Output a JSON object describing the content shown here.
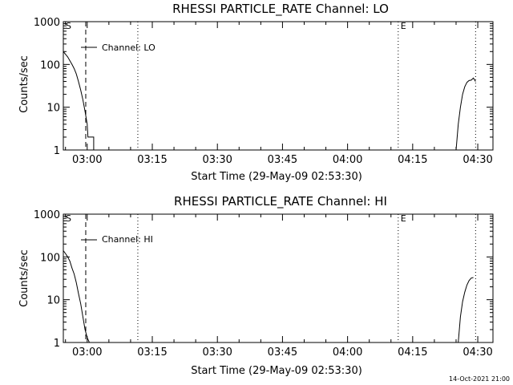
{
  "chart_data": [
    {
      "type": "line",
      "title": "RHESSI PARTICLE_RATE Channel: LO",
      "xlabel": "Start Time (29-May-09 02:53:30)",
      "ylabel": "Counts/sec",
      "yscale": "log",
      "ylim": [
        1,
        1000
      ],
      "xlim": [
        "02:54:30",
        "04:33:30"
      ],
      "x_ticks": [
        "03:00",
        "03:15",
        "03:30",
        "03:45",
        "04:00",
        "04:15",
        "04:30"
      ],
      "y_ticks": [
        "1",
        "10",
        "100",
        "1000"
      ],
      "legend": {
        "label": "Channel: LO",
        "position": "top-left"
      },
      "markers": [
        {
          "label": "S",
          "time": "02:54:30",
          "style": "dotted"
        },
        {
          "label": "",
          "time": "02:59:40",
          "style": "dashed"
        },
        {
          "label": "",
          "time": "03:11:40",
          "style": "dotted"
        },
        {
          "label": "E",
          "time": "04:11:40",
          "style": "dotted"
        },
        {
          "label": "",
          "time": "04:29:30",
          "style": "dotted"
        }
      ],
      "series": [
        {
          "segments": [
            {
              "x": [
                "02:54:30",
                "02:55:30",
                "02:56:30",
                "02:57:00",
                "02:57:30",
                "02:58:00",
                "02:58:30",
                "02:59:00",
                "02:59:30",
                "03:00:00",
                "03:00:10",
                "03:00:30",
                "03:00:30",
                "03:01:30",
                "03:01:30"
              ],
              "y": [
                200,
                150,
                100,
                80,
                60,
                40,
                25,
                15,
                8,
                4,
                2,
                2,
                2,
                2,
                1
              ]
            },
            {
              "x": [
                "04:25:00",
                "04:25:30",
                "04:26:00",
                "04:26:30",
                "04:27:00",
                "04:27:30",
                "04:28:00",
                "04:28:30",
                "04:29:00",
                "04:29:30"
              ],
              "y": [
                1,
                4,
                10,
                20,
                30,
                38,
                42,
                43,
                48,
                40
              ]
            }
          ]
        }
      ]
    },
    {
      "type": "line",
      "title": "RHESSI PARTICLE_RATE Channel: HI",
      "xlabel": "Start Time (29-May-09 02:53:30)",
      "ylabel": "Counts/sec",
      "yscale": "log",
      "ylim": [
        1,
        1000
      ],
      "xlim": [
        "02:54:30",
        "04:33:30"
      ],
      "x_ticks": [
        "03:00",
        "03:15",
        "03:30",
        "03:45",
        "04:00",
        "04:15",
        "04:30"
      ],
      "y_ticks": [
        "1",
        "10",
        "100",
        "1000"
      ],
      "legend": {
        "label": "Channel: HI",
        "position": "top-left"
      },
      "markers": [
        {
          "label": "S",
          "time": "02:54:30",
          "style": "dotted"
        },
        {
          "label": "",
          "time": "02:59:40",
          "style": "dashed"
        },
        {
          "label": "",
          "time": "03:11:40",
          "style": "dotted"
        },
        {
          "label": "E",
          "time": "04:11:40",
          "style": "dotted"
        },
        {
          "label": "",
          "time": "04:29:30",
          "style": "dotted"
        }
      ],
      "series": [
        {
          "segments": [
            {
              "x": [
                "02:54:30",
                "02:55:00",
                "02:55:30",
                "02:56:00",
                "02:56:30",
                "02:57:00",
                "02:57:30",
                "02:58:00",
                "02:58:30",
                "02:59:00",
                "02:59:30",
                "03:00:00",
                "03:00:30"
              ],
              "y": [
                140,
                120,
                100,
                80,
                55,
                40,
                25,
                14,
                8,
                4,
                2,
                1.3,
                1
              ]
            },
            {
              "x": [
                "04:25:30",
                "04:26:00",
                "04:26:30",
                "04:27:00",
                "04:27:30",
                "04:28:00",
                "04:28:30",
                "04:29:00"
              ],
              "y": [
                1,
                4,
                9,
                15,
                22,
                28,
                32,
                33
              ]
            }
          ]
        }
      ]
    }
  ],
  "footer": {
    "timestamp": "14-Oct-2021 21:00"
  }
}
